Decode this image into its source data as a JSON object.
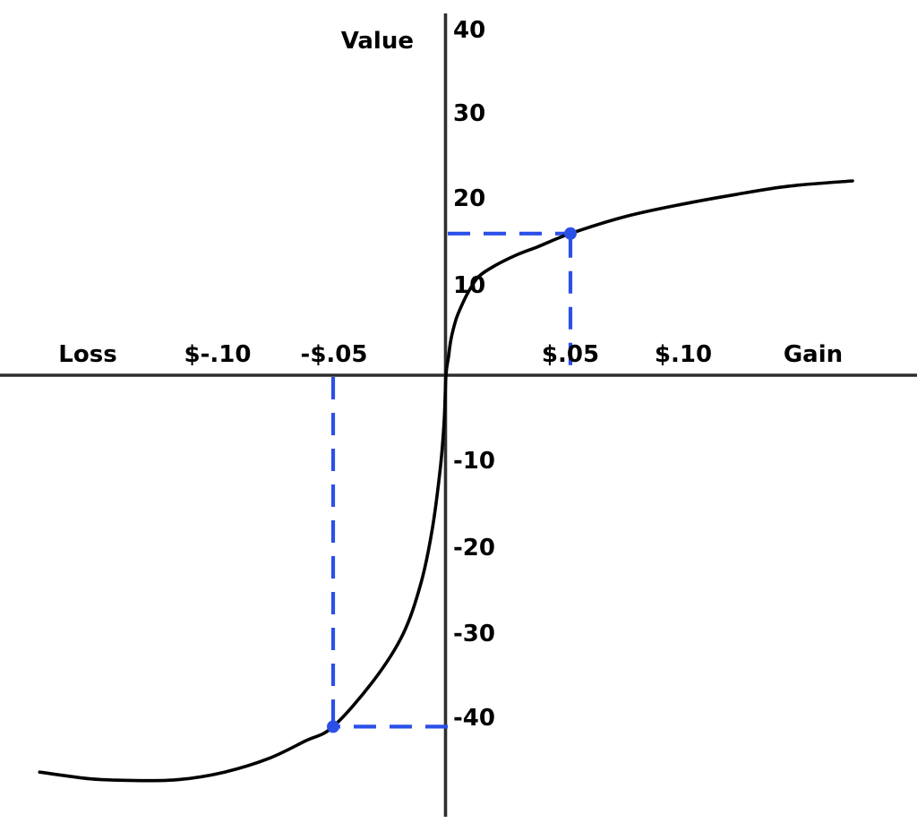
{
  "colors": {
    "accent": "#2b50e8",
    "axis": "#2e2e2e",
    "curve": "#000000",
    "text": "#000000",
    "background": "#ffffff"
  },
  "chart_data": {
    "type": "line",
    "title": "",
    "ylabel": "Value",
    "x_axis_labels": {
      "negative": "Loss",
      "positive": "Gain"
    },
    "x_ticks": [
      {
        "label": "$-.10",
        "value": -0.1
      },
      {
        "label": "-$.05",
        "value": -0.05
      },
      {
        "label": "$.05",
        "value": 0.05
      },
      {
        "label": "$.10",
        "value": 0.1
      }
    ],
    "y_ticks": [
      {
        "label": "40",
        "value": 40
      },
      {
        "label": "30",
        "value": 30
      },
      {
        "label": "20",
        "value": 20
      },
      {
        "label": "10",
        "value": 10
      },
      {
        "label": "-10",
        "value": -10
      },
      {
        "label": "-20",
        "value": -20
      },
      {
        "label": "-30",
        "value": -30
      },
      {
        "label": "-40",
        "value": -40
      }
    ],
    "xlim": [
      -0.19,
      0.195
    ],
    "ylim": [
      -50,
      42
    ],
    "grid": false,
    "series": [
      {
        "name": "value-function",
        "color": "#000000",
        "points": [
          [
            -0.177,
            -46.4
          ],
          [
            -0.155,
            -47.2
          ],
          [
            -0.136,
            -47.4
          ],
          [
            -0.117,
            -47.3
          ],
          [
            -0.097,
            -46.4
          ],
          [
            -0.078,
            -44.8
          ],
          [
            -0.062,
            -42.7
          ],
          [
            -0.05,
            -41.0
          ],
          [
            -0.032,
            -35.5
          ],
          [
            -0.019,
            -30.0
          ],
          [
            -0.011,
            -24.0
          ],
          [
            -0.006,
            -17.7
          ],
          [
            -0.0024,
            -10.5
          ],
          [
            -0.0008,
            -5.3
          ],
          [
            0,
            0
          ],
          [
            0.001,
            2.0
          ],
          [
            0.002,
            4.0
          ],
          [
            0.004,
            6.2
          ],
          [
            0.006,
            7.6
          ],
          [
            0.009,
            9.3
          ],
          [
            0.013,
            11.0
          ],
          [
            0.019,
            12.2
          ],
          [
            0.028,
            13.5
          ],
          [
            0.037,
            14.5
          ],
          [
            0.05,
            16.0
          ],
          [
            0.075,
            18.0
          ],
          [
            0.1,
            19.4
          ],
          [
            0.123,
            20.5
          ],
          [
            0.147,
            21.5
          ],
          [
            0.175,
            22.1
          ]
        ]
      }
    ],
    "highlight_points": [
      {
        "x": 0.05,
        "value": 16
      },
      {
        "x": -0.05,
        "value": -41
      }
    ]
  }
}
